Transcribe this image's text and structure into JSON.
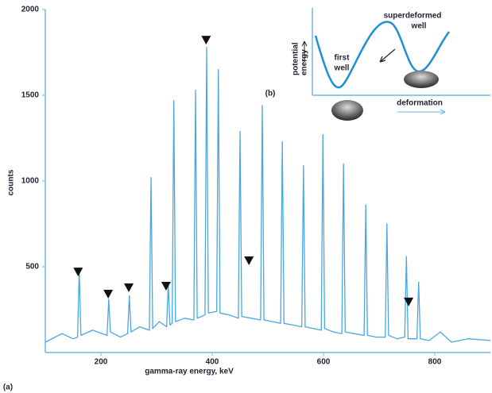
{
  "chart_data": {
    "type": "line",
    "x_label": "gamma-ray energy, keV",
    "y_label": "counts",
    "panel_label": "(a)",
    "x": [
      100,
      130,
      150,
      158,
      161,
      164,
      185,
      211,
      214,
      217,
      235,
      248,
      251,
      254,
      270,
      287,
      290,
      293,
      305,
      318,
      321,
      324,
      328,
      331,
      334,
      350,
      367,
      370,
      373,
      381,
      387,
      390,
      393,
      408,
      411,
      414,
      430,
      447,
      450,
      453,
      470,
      487,
      490,
      493,
      508,
      523,
      526,
      529,
      545,
      561,
      564,
      567,
      582,
      596,
      599,
      602,
      618,
      633,
      636,
      639,
      655,
      673,
      676,
      679,
      695,
      711,
      714,
      717,
      732,
      746,
      749,
      752,
      768,
      771,
      774,
      790,
      810,
      830,
      860,
      900
    ],
    "series": [
      {
        "color": "#4aa8e0",
        "values": [
          60,
          110,
          80,
          90,
          480,
          100,
          130,
          100,
          310,
          120,
          90,
          110,
          330,
          120,
          150,
          130,
          1020,
          140,
          180,
          150,
          400,
          160,
          170,
          1470,
          180,
          200,
          190,
          1530,
          200,
          210,
          220,
          1780,
          230,
          240,
          1650,
          230,
          220,
          200,
          1290,
          210,
          200,
          190,
          1440,
          190,
          180,
          170,
          1230,
          170,
          160,
          150,
          1090,
          150,
          140,
          130,
          1270,
          140,
          120,
          110,
          1100,
          120,
          110,
          100,
          860,
          100,
          90,
          90,
          750,
          100,
          80,
          90,
          560,
          80,
          80,
          410,
          80,
          70,
          120,
          60,
          80,
          70
        ]
      }
    ],
    "markers": {
      "x": [
        159,
        213,
        250,
        317,
        389,
        466,
        753
      ],
      "y": [
        444,
        315,
        352,
        361,
        1796,
        509,
        269
      ],
      "color": "#111111"
    },
    "xlim": [
      100,
      900
    ],
    "xticks": [
      200,
      400,
      600,
      800
    ],
    "ylim": [
      0,
      2000
    ],
    "yticks": [
      500,
      1000,
      1500,
      2000
    ],
    "inset": {
      "label": "(b)",
      "superdeformed_well": [
        "superdeformed",
        "well"
      ],
      "first_well": [
        "first",
        "well"
      ],
      "y_axis_label": [
        "potential",
        "energy"
      ],
      "x_axis_label": "deformation"
    }
  }
}
